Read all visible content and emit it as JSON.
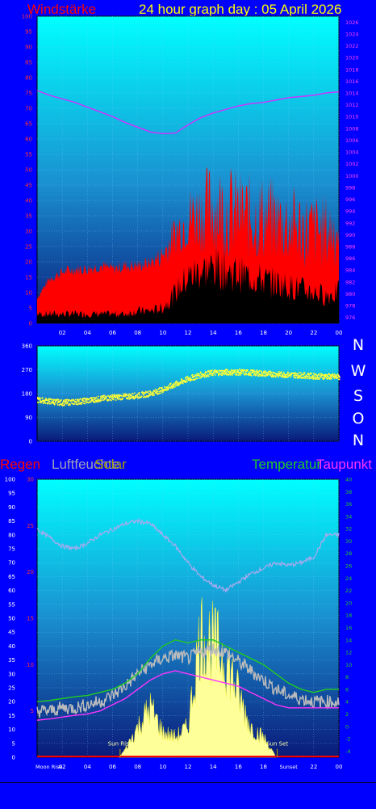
{
  "header": {
    "wind_title": "Windstärke",
    "graph_title": "24 hour graph day : 05 April 2026"
  },
  "compass": {
    "letters": [
      "N",
      "W",
      "S",
      "O",
      "N"
    ]
  },
  "lower_header": {
    "rain": "Regen",
    "humidity": "Luftfeuchte",
    "solar": "Solar",
    "temperature": "Temperatur",
    "dewpoint": "Taupunkt"
  },
  "colors": {
    "wind": "#ff0000",
    "gust_base": "#000000",
    "pressure": "#cc33ff",
    "direction": "#ffff33",
    "humidity": "#aaaaee",
    "solar": "#ffff99",
    "temperature": "#22cc22",
    "dewpoint": "#ff33ff",
    "temp_band": "#bbbbbb",
    "rain": "#ff0000"
  },
  "chart_data": [
    {
      "type": "line",
      "title": "Windstärke",
      "x_ticks": [
        "02",
        "04",
        "06",
        "08",
        "10",
        "12",
        "14",
        "16",
        "18",
        "20",
        "22",
        "00"
      ],
      "y_left": {
        "ticks": [
          0,
          5,
          10,
          15,
          20,
          25,
          30,
          35,
          40,
          45,
          50,
          55,
          60,
          65,
          70,
          75,
          80,
          85,
          90,
          95,
          100
        ],
        "range": [
          0,
          100
        ]
      },
      "y_right": {
        "ticks": [
          976,
          978,
          980,
          982,
          984,
          986,
          988,
          990,
          992,
          994,
          996,
          998,
          1000,
          1002,
          1004,
          1006,
          1008,
          1010,
          1012,
          1014,
          1016,
          1018,
          1020,
          1022,
          1024,
          1026
        ],
        "range": [
          975,
          1027
        ]
      },
      "series": [
        {
          "x": [
            0,
            1,
            2,
            3,
            4,
            5,
            6,
            7,
            8,
            9,
            10,
            11,
            12,
            13,
            14,
            15,
            16,
            17,
            18,
            19,
            20,
            21,
            22,
            23,
            24
          ],
          "values": [
            8,
            14,
            16,
            17,
            17,
            18,
            17,
            18,
            18,
            19,
            21,
            27,
            31,
            32,
            33,
            32,
            31,
            30,
            30,
            29,
            28,
            27,
            26,
            26,
            27
          ]
        },
        {
          "x": [
            0,
            1,
            2,
            3,
            4,
            5,
            6,
            7,
            8,
            9,
            10,
            11,
            12,
            13,
            14,
            15,
            16,
            17,
            18,
            19,
            20,
            21,
            22,
            23,
            24
          ],
          "values": [
            3,
            3,
            3,
            3,
            3,
            3,
            3,
            3,
            4,
            4,
            5,
            10,
            15,
            17,
            18,
            17,
            16,
            15,
            14,
            13,
            12,
            11,
            10,
            9,
            10
          ]
        },
        {
          "x": [
            0,
            1,
            2,
            3,
            4,
            5,
            6,
            7,
            8,
            9,
            10,
            11,
            12,
            13,
            14,
            15,
            16,
            17,
            18,
            19,
            20,
            21,
            22,
            23,
            24
          ],
          "values": [
            1014.4,
            1013.6,
            1013.0,
            1012.4,
            1011.6,
            1010.8,
            1010.0,
            1009.0,
            1008.2,
            1007.4,
            1007.1,
            1007.2,
            1008.6,
            1009.8,
            1010.6,
            1011.2,
            1011.8,
            1012.2,
            1012.4,
            1012.8,
            1013.2,
            1013.4,
            1013.6,
            1014.0,
            1014.2
          ]
        }
      ]
    },
    {
      "type": "scatter",
      "y_ticks": [
        0,
        90,
        180,
        270,
        360
      ],
      "range": [
        0,
        360
      ],
      "series": [
        {
          "x": [
            0,
            1,
            2,
            3,
            4,
            5,
            6,
            7,
            8,
            9,
            10,
            11,
            12,
            13,
            14,
            15,
            16,
            17,
            18,
            19,
            20,
            21,
            22,
            23,
            24
          ],
          "values": [
            155,
            150,
            145,
            148,
            153,
            160,
            165,
            168,
            172,
            180,
            195,
            215,
            235,
            250,
            258,
            260,
            260,
            258,
            255,
            252,
            250,
            248,
            245,
            244,
            242
          ]
        }
      ]
    },
    {
      "type": "area",
      "x_ticks": [
        "02",
        "04",
        "06",
        "08",
        "10",
        "12",
        "14",
        "16",
        "18",
        "22",
        "00"
      ],
      "y_left": {
        "ticks": [
          0,
          5,
          10,
          15,
          20,
          25,
          30,
          35,
          40,
          45,
          50,
          55,
          60,
          65,
          70,
          75,
          80,
          85,
          90,
          95,
          100
        ],
        "range": [
          0,
          100
        ]
      },
      "y_rain": {
        "ticks": [
          5,
          10,
          15,
          20,
          25,
          30
        ],
        "range": [
          0,
          30
        ]
      },
      "y_right": {
        "ticks": [
          -4,
          -2,
          0,
          2,
          4,
          6,
          8,
          10,
          12,
          14,
          16,
          18,
          20,
          22,
          24,
          26,
          28,
          30,
          32,
          34,
          36,
          38,
          40
        ],
        "range": [
          -5,
          40
        ]
      },
      "annotations": [
        "Sun Rise",
        "Sun Set",
        "Moon Rise",
        "Sunset"
      ],
      "series": [
        {
          "x": [
            0,
            1,
            2,
            3,
            4,
            5,
            6,
            7,
            8,
            9,
            10,
            11,
            12,
            13,
            14,
            15,
            16,
            17,
            18,
            19,
            20,
            21,
            22,
            23,
            24
          ],
          "values": [
            82,
            79,
            76,
            75,
            77,
            80,
            82,
            84,
            85,
            84,
            80,
            76,
            70,
            65,
            62,
            60,
            63,
            66,
            68,
            70,
            69,
            70,
            72,
            80,
            80
          ]
        },
        {
          "x": [
            6.5,
            7,
            8,
            9,
            10,
            11,
            12,
            13,
            14,
            15,
            16,
            17,
            18,
            19
          ],
          "values": [
            0,
            3,
            12,
            20,
            10,
            8,
            12,
            50,
            45,
            40,
            25,
            12,
            8,
            0
          ]
        },
        {
          "x": [
            0,
            1,
            2,
            3,
            4,
            5,
            6,
            7,
            8,
            9,
            10,
            11,
            12,
            13,
            14,
            15,
            16,
            17,
            18,
            19,
            20,
            21,
            22,
            23,
            24
          ],
          "values": [
            4.0,
            4.2,
            4.5,
            4.8,
            5.0,
            5.5,
            6.0,
            7.0,
            8.5,
            11.0,
            13.0,
            14.0,
            13.5,
            14.0,
            14.0,
            13.0,
            12.0,
            11.0,
            10.0,
            8.5,
            7.0,
            6.0,
            5.5,
            6.0,
            6.0
          ]
        },
        {
          "x": [
            0,
            1,
            2,
            3,
            4,
            5,
            6,
            7,
            8,
            9,
            10,
            11,
            12,
            13,
            14,
            15,
            16,
            17,
            18,
            19,
            20,
            21,
            22,
            23,
            24
          ],
          "values": [
            1.0,
            1.2,
            1.5,
            1.8,
            2.0,
            2.5,
            3.5,
            4.5,
            6.0,
            7.5,
            8.5,
            9.0,
            8.5,
            8.0,
            7.5,
            7.0,
            6.5,
            5.5,
            4.5,
            3.5,
            3.0,
            3.0,
            3.0,
            3.0,
            3.0
          ]
        },
        {
          "x": [
            0,
            1,
            2,
            3,
            4,
            5,
            6,
            7,
            8,
            9,
            10,
            11,
            12,
            13,
            14,
            15,
            16,
            17,
            18,
            19,
            20,
            21,
            22,
            23,
            24
          ],
          "values": [
            2.5,
            2.5,
            3.0,
            3.0,
            3.5,
            4.0,
            5.0,
            6.5,
            8.5,
            10.0,
            11.0,
            11.5,
            11.0,
            12.0,
            12.5,
            12.0,
            10.5,
            9.0,
            7.5,
            6.0,
            5.0,
            4.5,
            4.0,
            4.0,
            4.0
          ]
        },
        {
          "x": [
            0,
            24
          ],
          "values": [
            0,
            0
          ]
        }
      ]
    }
  ]
}
